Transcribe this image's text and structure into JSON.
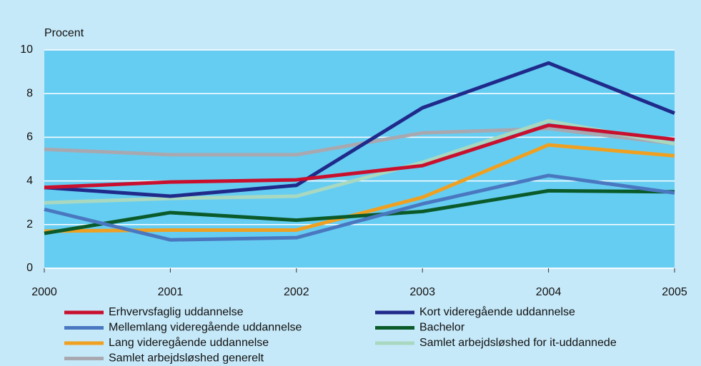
{
  "chart_data": {
    "type": "line",
    "y_label": "Procent",
    "x": [
      2000,
      2001,
      2002,
      2003,
      2004,
      2005
    ],
    "xlim": [
      2000,
      2005
    ],
    "xticks": [
      2000,
      2001,
      2002,
      2003,
      2004,
      2005
    ],
    "ylim": [
      0,
      10
    ],
    "yticks": [
      0,
      2,
      4,
      6,
      8,
      10
    ],
    "grid": true,
    "legend": "bottom",
    "series": [
      {
        "name": "Erhvervsfaglig uddannelse",
        "color": "#c8102e",
        "values": [
          3.7,
          3.95,
          4.05,
          4.7,
          6.55,
          5.9
        ]
      },
      {
        "name": "Kort videregående uddannelse",
        "color": "#1f2a8a",
        "values": [
          3.7,
          3.3,
          3.8,
          7.35,
          9.4,
          7.1
        ]
      },
      {
        "name": "Mellemlang videregående uddannelse",
        "color": "#4a78c0",
        "values": [
          2.7,
          1.3,
          1.4,
          2.95,
          4.25,
          3.45
        ]
      },
      {
        "name": "Bachelor",
        "color": "#0a5a2a",
        "values": [
          1.6,
          2.55,
          2.2,
          2.6,
          3.55,
          3.5
        ]
      },
      {
        "name": "Lang videregående uddannelse",
        "color": "#f0a020",
        "values": [
          1.7,
          1.75,
          1.75,
          3.25,
          5.65,
          5.15
        ]
      },
      {
        "name": "Samlet arbejdsløshed for it-uddannede",
        "color": "#a8d8c0",
        "values": [
          3.0,
          3.2,
          3.3,
          4.85,
          6.75,
          5.7
        ]
      },
      {
        "name": "Samlet arbejdsløshed generelt",
        "color": "#a8a8b0",
        "values": [
          5.45,
          5.2,
          5.2,
          6.2,
          6.4,
          5.7
        ]
      }
    ]
  }
}
